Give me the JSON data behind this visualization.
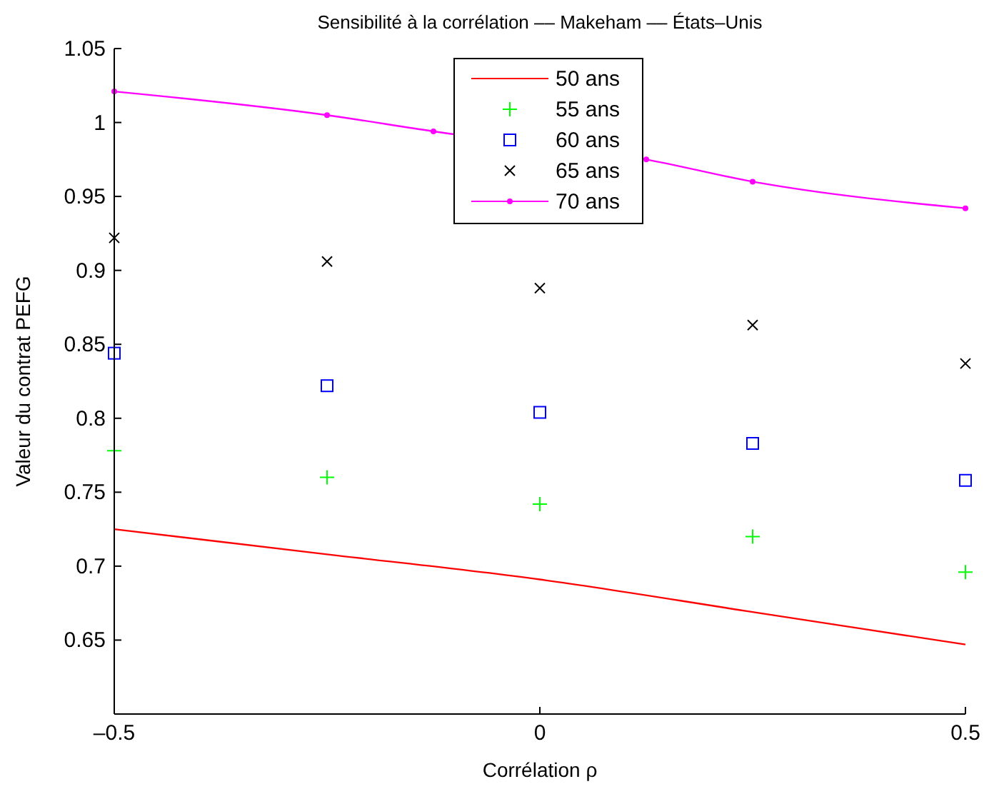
{
  "chart_data": {
    "type": "line",
    "title": "Sensibilité à la corrélation –– Makeham –– États–Unis",
    "xlabel": "Corrélation ρ",
    "ylabel": "Valeur du contrat PEFG",
    "x": [
      -0.5,
      -0.25,
      0,
      0.25,
      0.5
    ],
    "series": [
      {
        "name": "50 ans",
        "color": "#ff0000",
        "marker": "none",
        "line_style": "solid",
        "values": [
          0.725,
          0.708,
          0.691,
          0.669,
          0.647
        ]
      },
      {
        "name": "55 ans",
        "type": "scatter",
        "color": "#00ff00",
        "marker": "plus",
        "values": [
          0.778,
          0.76,
          0.742,
          0.72,
          0.696
        ]
      },
      {
        "name": "60 ans",
        "type": "scatter",
        "color": "#0000ff",
        "marker": "square",
        "values": [
          0.844,
          0.822,
          0.804,
          0.783,
          0.758
        ]
      },
      {
        "name": "65 ans",
        "type": "scatter",
        "color": "#000000",
        "marker": "cross",
        "values": [
          0.922,
          0.906,
          0.888,
          0.863,
          0.837
        ]
      },
      {
        "name": "70 ans",
        "color": "#ff00ff",
        "marker": "circle",
        "line_style": "solid",
        "x": [
          -0.5,
          -0.25,
          -0.125,
          0.125,
          0.25,
          0.5
        ],
        "values": [
          1.021,
          1.005,
          0.994,
          0.975,
          0.96,
          0.942
        ]
      }
    ],
    "xlim": [
      -0.5,
      0.5
    ],
    "xticks": [
      {
        "value": -0.5,
        "label": "–0.5"
      },
      0,
      0.5
    ],
    "ylim": [
      0.6,
      1.05
    ],
    "yticks": [
      0.65,
      0.7,
      0.75,
      0.8,
      0.85,
      0.9,
      0.95,
      1,
      1.05
    ],
    "grid": false,
    "legend": "top"
  }
}
